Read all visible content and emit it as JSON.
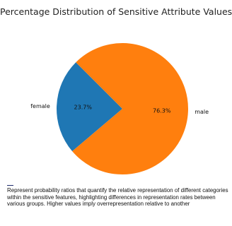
{
  "chart_data": {
    "type": "pie",
    "title": "Percentage Distribution of Sensitive Attribute Values",
    "slices": [
      {
        "label": "female",
        "value": 23.7,
        "pct_label": "23.7%",
        "color": "#1f77b4"
      },
      {
        "label": "male",
        "value": 76.3,
        "pct_label": "76.3%",
        "color": "#ff7f0e"
      }
    ],
    "legend": "none"
  },
  "caption": "Represent probability ratios that quantify the relative representation of different categories within the sensitive features, highlighting differences in representation rates between various groups. Higher values imply overrepresentation relative to another"
}
